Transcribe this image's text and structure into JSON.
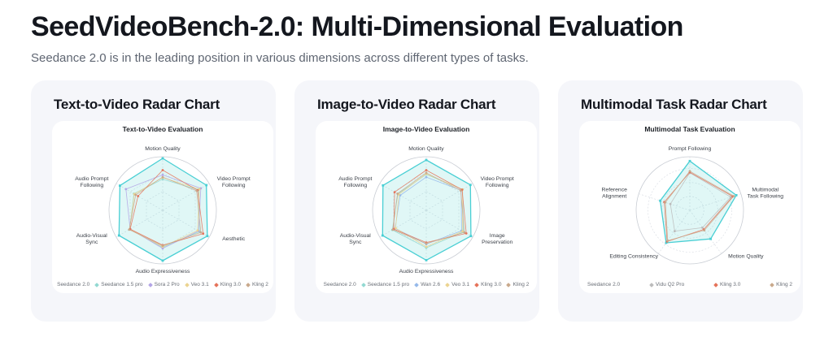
{
  "header": {
    "title": "SeedVideoBench-2.0: Multi-Dimensional Evaluation",
    "subtitle": "Seedance 2.0 is in the leading position in various dimensions across different types of tasks."
  },
  "cards": [
    {
      "heading": "Text-to-Video Radar Chart"
    },
    {
      "heading": "Image-to-Video Radar Chart"
    },
    {
      "heading": "Multimodal Task Radar Chart"
    }
  ],
  "accent_color": "#49cfd4",
  "chart_data": [
    {
      "type": "radar",
      "title": "Text-to-Video Evaluation",
      "grid_shape": "polygon",
      "grid_levels": [
        0.35,
        0.7
      ],
      "value_range": [
        0,
        1
      ],
      "axes": [
        [
          "Motion Quality"
        ],
        [
          "Video Prompt",
          "Following"
        ],
        [
          "Aesthetic"
        ],
        [
          "Audio Expressiveness"
        ],
        [
          "Audio-Visual",
          "Sync"
        ],
        [
          "Audio Prompt",
          "Following"
        ]
      ],
      "series": [
        {
          "name": "Seedance 2.0",
          "color": "#49cfd4",
          "fill": "rgba(85,210,205,0.18)",
          "marker": "square",
          "legend_marker": false,
          "values": [
            0.97,
            0.94,
            0.96,
            0.94,
            0.94,
            0.92
          ]
        },
        {
          "name": "Seedance 1.5 pro",
          "color": "#93d9d2",
          "fill": "none",
          "marker": "dot",
          "legend_marker": true,
          "values": [
            0.58,
            0.77,
            0.79,
            0.69,
            0.71,
            0.62
          ]
        },
        {
          "name": "Sora 2 Pro",
          "color": "#b3a5e6",
          "fill": "none",
          "marker": "dot",
          "legend_marker": true,
          "values": [
            0.66,
            0.82,
            0.77,
            0.71,
            0.7,
            0.79
          ]
        },
        {
          "name": "Veo 3.1",
          "color": "#ecd491",
          "fill": "none",
          "marker": "dot",
          "legend_marker": true,
          "values": [
            0.61,
            0.79,
            0.75,
            0.68,
            0.71,
            0.61
          ]
        },
        {
          "name": "Kling 3.0",
          "color": "#e5735a",
          "fill": "none",
          "marker": "dot",
          "legend_marker": true,
          "values": [
            0.75,
            0.75,
            0.87,
            0.65,
            0.7,
            0.53
          ]
        },
        {
          "name": "Kling 2",
          "color": "#c9a98c",
          "fill": "none",
          "marker": "dot",
          "legend_marker": true,
          "values": [
            0.62,
            0.73,
            0.82,
            0.66,
            0.72,
            0.58
          ]
        }
      ]
    },
    {
      "type": "radar",
      "title": "Image-to-Video Evaluation",
      "grid_shape": "polygon",
      "grid_levels": [
        0.35,
        0.7
      ],
      "value_range": [
        0,
        1
      ],
      "axes": [
        [
          "Motion Quality"
        ],
        [
          "Video Prompt",
          "Following"
        ],
        [
          "Image",
          "Preservation"
        ],
        [
          "Audio Expressiveness"
        ],
        [
          "Audio-Visual",
          "Sync"
        ],
        [
          "Audio Prompt",
          "Following"
        ]
      ],
      "series": [
        {
          "name": "Seedance 2.0",
          "color": "#49cfd4",
          "fill": "rgba(85,210,205,0.18)",
          "marker": "square",
          "legend_marker": false,
          "values": [
            0.94,
            0.95,
            0.96,
            0.93,
            0.94,
            0.93
          ]
        },
        {
          "name": "Seedance 1.5 pro",
          "color": "#93d9d2",
          "fill": "none",
          "marker": "dot",
          "legend_marker": true,
          "values": [
            0.67,
            0.78,
            0.8,
            0.7,
            0.73,
            0.61
          ]
        },
        {
          "name": "Wan 2.6",
          "color": "#96b9ea",
          "fill": "none",
          "marker": "dot",
          "legend_marker": true,
          "values": [
            0.62,
            0.75,
            0.76,
            0.63,
            0.67,
            0.56
          ]
        },
        {
          "name": "Veo 3.1",
          "color": "#ecd491",
          "fill": "none",
          "marker": "dot",
          "legend_marker": true,
          "values": [
            0.68,
            0.78,
            0.78,
            0.68,
            0.66,
            0.59
          ]
        },
        {
          "name": "Kling 3.0",
          "color": "#e5735a",
          "fill": "none",
          "marker": "dot",
          "legend_marker": true,
          "values": [
            0.75,
            0.77,
            0.86,
            0.6,
            0.7,
            0.68
          ]
        },
        {
          "name": "Kling 2",
          "color": "#c9a98c",
          "fill": "none",
          "marker": "dot",
          "legend_marker": true,
          "values": [
            0.7,
            0.74,
            0.82,
            0.62,
            0.72,
            0.62
          ]
        }
      ]
    },
    {
      "type": "radar",
      "title": "Multimodal Task Evaluation",
      "grid_shape": "circle",
      "grid_levels": [
        0.26,
        0.52,
        0.78
      ],
      "value_range": [
        0,
        1
      ],
      "axes": [
        [
          "Prompt Following"
        ],
        [
          "Multimodal",
          "Task Following"
        ],
        [
          "Motion Quality"
        ],
        [
          "Editing Consistency"
        ],
        [
          "Reference",
          "Alignment"
        ]
      ],
      "series": [
        {
          "name": "Seedance 2.0",
          "color": "#49cfd4",
          "fill": "rgba(85,210,205,0.18)",
          "marker": "square",
          "legend_marker": false,
          "values": [
            0.92,
            0.91,
            0.66,
            0.75,
            0.58
          ]
        },
        {
          "name": "Vidu Q2 Pro",
          "color": "#bcbcbc",
          "fill": "none",
          "marker": "dot",
          "legend_marker": true,
          "values": [
            0.7,
            0.8,
            0.4,
            0.48,
            0.38
          ]
        },
        {
          "name": "Kling 3.0",
          "color": "#e5735a",
          "fill": "none",
          "marker": "dot",
          "legend_marker": true,
          "values": [
            0.71,
            0.84,
            0.44,
            0.72,
            0.5
          ]
        },
        {
          "name": "Kling 2",
          "color": "#c9a98c",
          "fill": "none",
          "marker": "dot",
          "legend_marker": true,
          "values": [
            0.73,
            0.86,
            0.46,
            0.7,
            0.48
          ]
        }
      ]
    }
  ]
}
